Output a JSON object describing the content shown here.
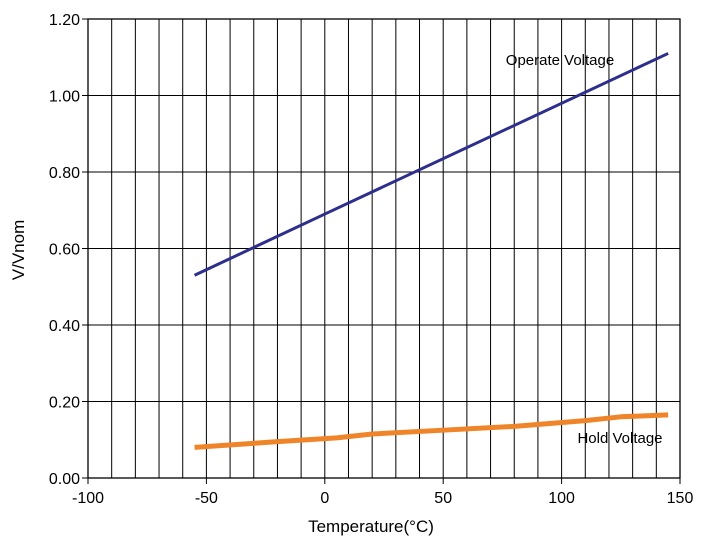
{
  "chart_data": {
    "type": "line",
    "title": "",
    "xlabel": "Temperature(°C)",
    "ylabel": "V/Vnom",
    "xlim": [
      -100,
      150
    ],
    "ylim": [
      0,
      1.2
    ],
    "x_ticks": [
      -100,
      -50,
      0,
      50,
      100,
      150
    ],
    "x_tick_labels": [
      "-100",
      "-50",
      "0",
      "50",
      "100",
      "150"
    ],
    "y_ticks": [
      0,
      0.2,
      0.4,
      0.6,
      0.8,
      1.0,
      1.2
    ],
    "y_tick_labels": [
      "0.00",
      "0.20",
      "0.40",
      "0.60",
      "0.80",
      "1.00",
      "1.20"
    ],
    "x_minor_step": 10,
    "grid": true,
    "series": [
      {
        "name": "Operate Voltage",
        "color": "#2e2f8c",
        "x": [
          -55,
          0,
          145
        ],
        "y": [
          0.53,
          0.69,
          1.11
        ]
      },
      {
        "name": "Hold Voltage",
        "color": "#f08428",
        "x": [
          -55,
          -20,
          5,
          20,
          50,
          80,
          110,
          125,
          145
        ],
        "y": [
          0.08,
          0.095,
          0.105,
          0.115,
          0.125,
          0.135,
          0.15,
          0.16,
          0.165
        ]
      }
    ]
  }
}
